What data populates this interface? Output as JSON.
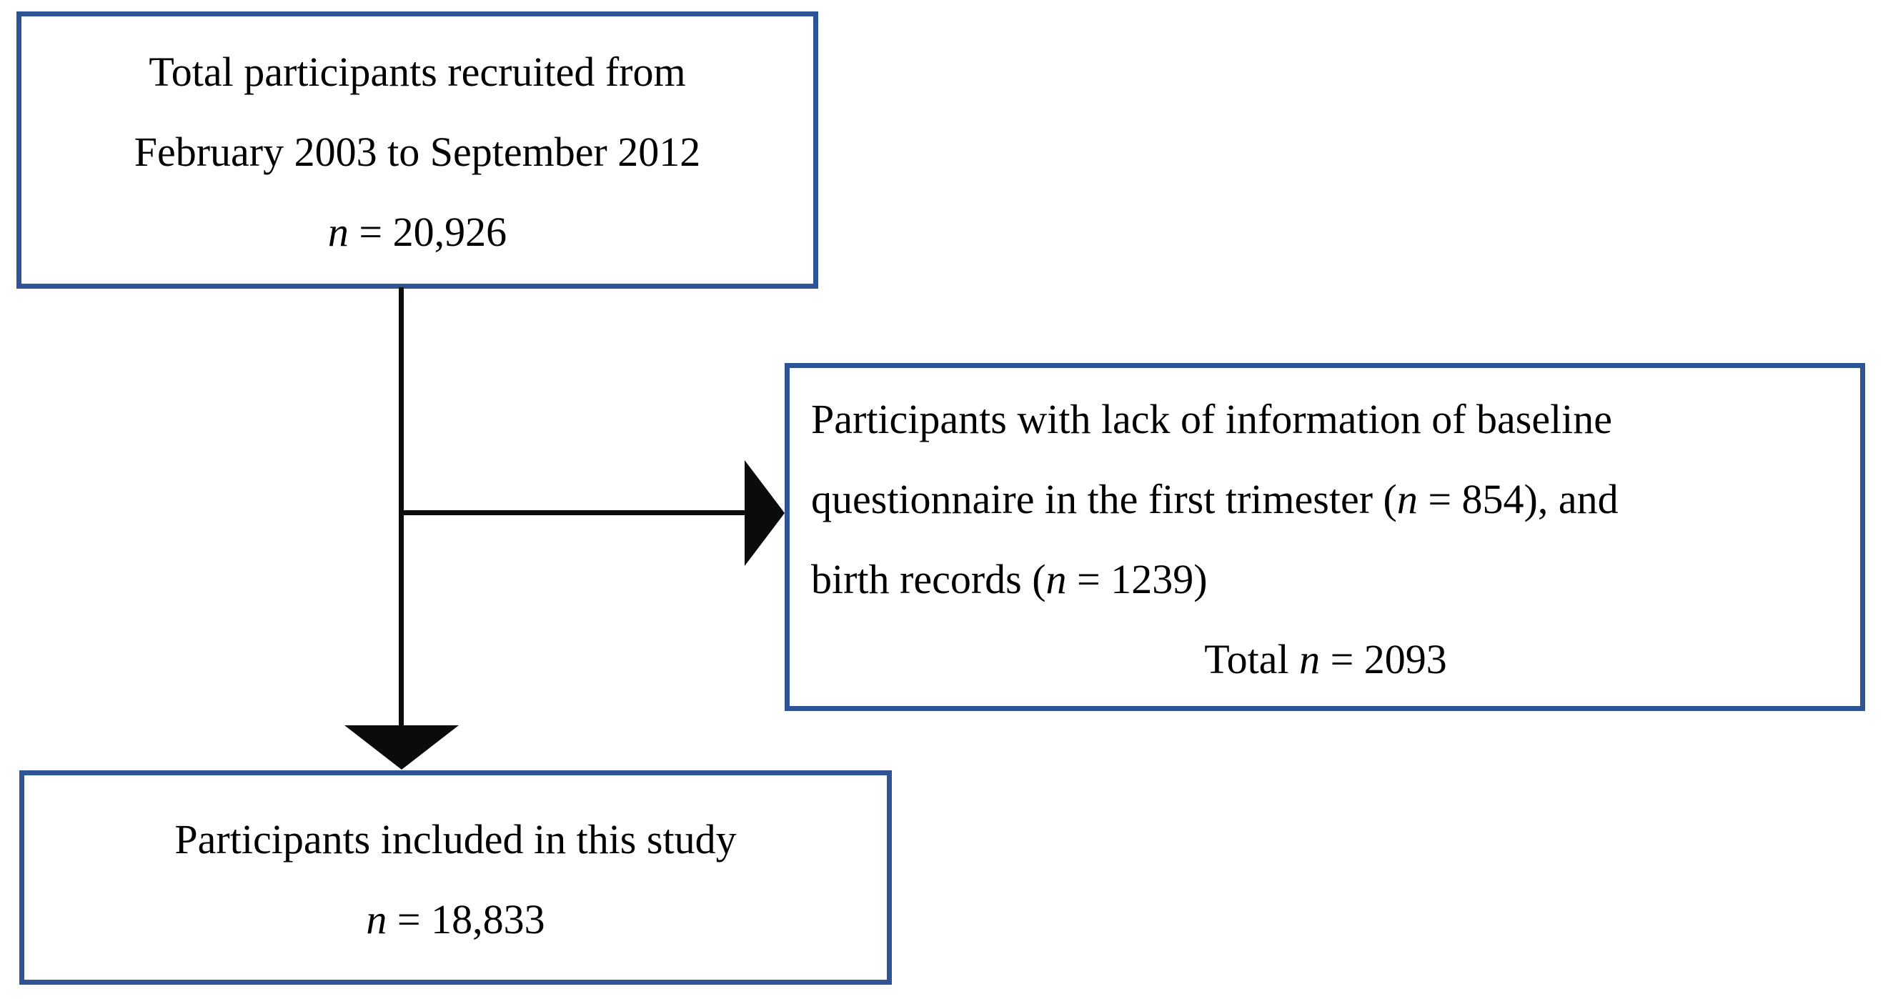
{
  "diagram": {
    "colors": {
      "box_border": "#2F5496",
      "connector": "#0b0b0b",
      "text": "#000000",
      "background": "#ffffff"
    },
    "boxes": {
      "recruited": {
        "lines": {
          "line1": [
            {
              "t": "Total participants recruited from"
            }
          ],
          "line2": [
            {
              "t": "February 2003 to September 2012"
            }
          ],
          "line3": [
            {
              "t": "n",
              "i": true
            },
            {
              "t": " = 20,926"
            }
          ]
        }
      },
      "excluded": {
        "lines": {
          "line1": [
            {
              "t": "Participants with lack of information of baseline"
            }
          ],
          "line2": [
            {
              "t": "questionnaire in the first trimester ("
            },
            {
              "t": "n",
              "i": true
            },
            {
              "t": " = 854), and"
            }
          ],
          "line3": [
            {
              "t": "birth records ("
            },
            {
              "t": "n",
              "i": true
            },
            {
              "t": " = 1239)"
            }
          ],
          "line4": [
            {
              "t": "Total "
            },
            {
              "t": "n",
              "i": true
            },
            {
              "t": " = 2093"
            }
          ]
        }
      },
      "included": {
        "lines": {
          "line1": [
            {
              "t": "Participants included in this study"
            }
          ],
          "line2": [
            {
              "t": "n",
              "i": true
            },
            {
              "t": " = 18,833"
            }
          ]
        }
      }
    }
  }
}
